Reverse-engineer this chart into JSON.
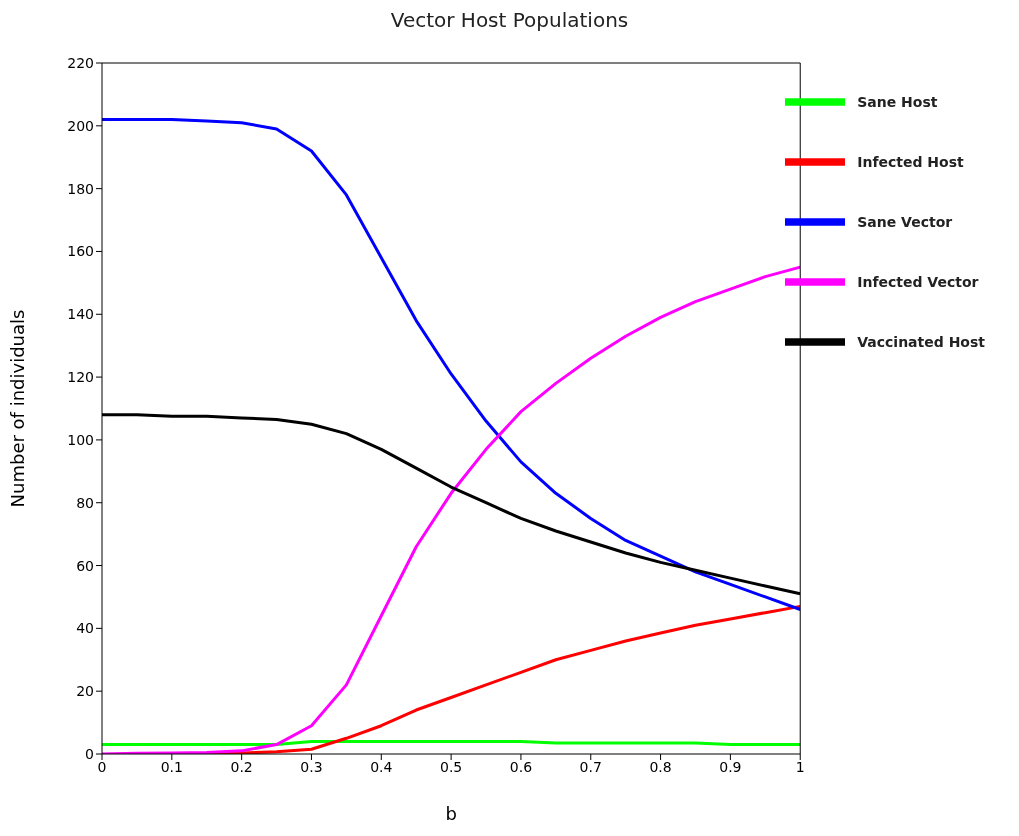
{
  "chart_data": {
    "type": "line",
    "title": "Vector Host Populations",
    "xlabel": "b",
    "ylabel": "Number of individuals",
    "x": [
      0,
      0.05,
      0.1,
      0.15,
      0.2,
      0.25,
      0.3,
      0.35,
      0.4,
      0.45,
      0.5,
      0.55,
      0.6,
      0.65,
      0.7,
      0.75,
      0.8,
      0.85,
      0.9,
      0.95,
      1
    ],
    "series": [
      {
        "name": "Sane Host",
        "color": "#00ff00",
        "values": [
          3,
          3,
          3,
          3,
          3,
          3,
          4,
          4,
          4,
          4,
          4,
          4,
          4,
          3.5,
          3.5,
          3.5,
          3.5,
          3.5,
          3,
          3,
          3
        ]
      },
      {
        "name": "Infected Host",
        "color": "#ff0000",
        "values": [
          null,
          null,
          null,
          0.2,
          0.3,
          0.7,
          1.5,
          5,
          9,
          14,
          18,
          22,
          26,
          30,
          33,
          36,
          38.5,
          41,
          43,
          45,
          47
        ]
      },
      {
        "name": "Sane Vector",
        "color": "#0000ff",
        "values": [
          202,
          202,
          202,
          201.5,
          201,
          199,
          192,
          178,
          158,
          138,
          121,
          106,
          93,
          83,
          75,
          68,
          63,
          58,
          54,
          50,
          46
        ]
      },
      {
        "name": "Infected Vector",
        "color": "#ff00ff",
        "values": [
          0,
          0.2,
          0.3,
          0.5,
          1,
          3,
          9,
          22,
          44,
          66,
          83,
          97,
          109,
          118,
          126,
          133,
          139,
          144,
          148,
          152,
          155
        ]
      },
      {
        "name": "Vaccinated Host",
        "color": "#000000",
        "values": [
          108,
          108,
          107.5,
          107.5,
          107,
          106.5,
          105,
          102,
          97,
          91,
          85,
          80,
          75,
          71,
          67.5,
          64,
          61,
          58.5,
          56,
          53.5,
          51
        ]
      }
    ],
    "xlim": [
      0,
      1
    ],
    "xticks": [
      0,
      0.1,
      0.2,
      0.3,
      0.4,
      0.5,
      0.6,
      0.7,
      0.8,
      0.9,
      1
    ],
    "ylim": [
      0,
      220
    ],
    "yticks": [
      0,
      20,
      40,
      60,
      80,
      100,
      120,
      140,
      160,
      180,
      200,
      220
    ],
    "grid": false,
    "legend": "top right",
    "marker": "none",
    "line_style": "solid"
  }
}
